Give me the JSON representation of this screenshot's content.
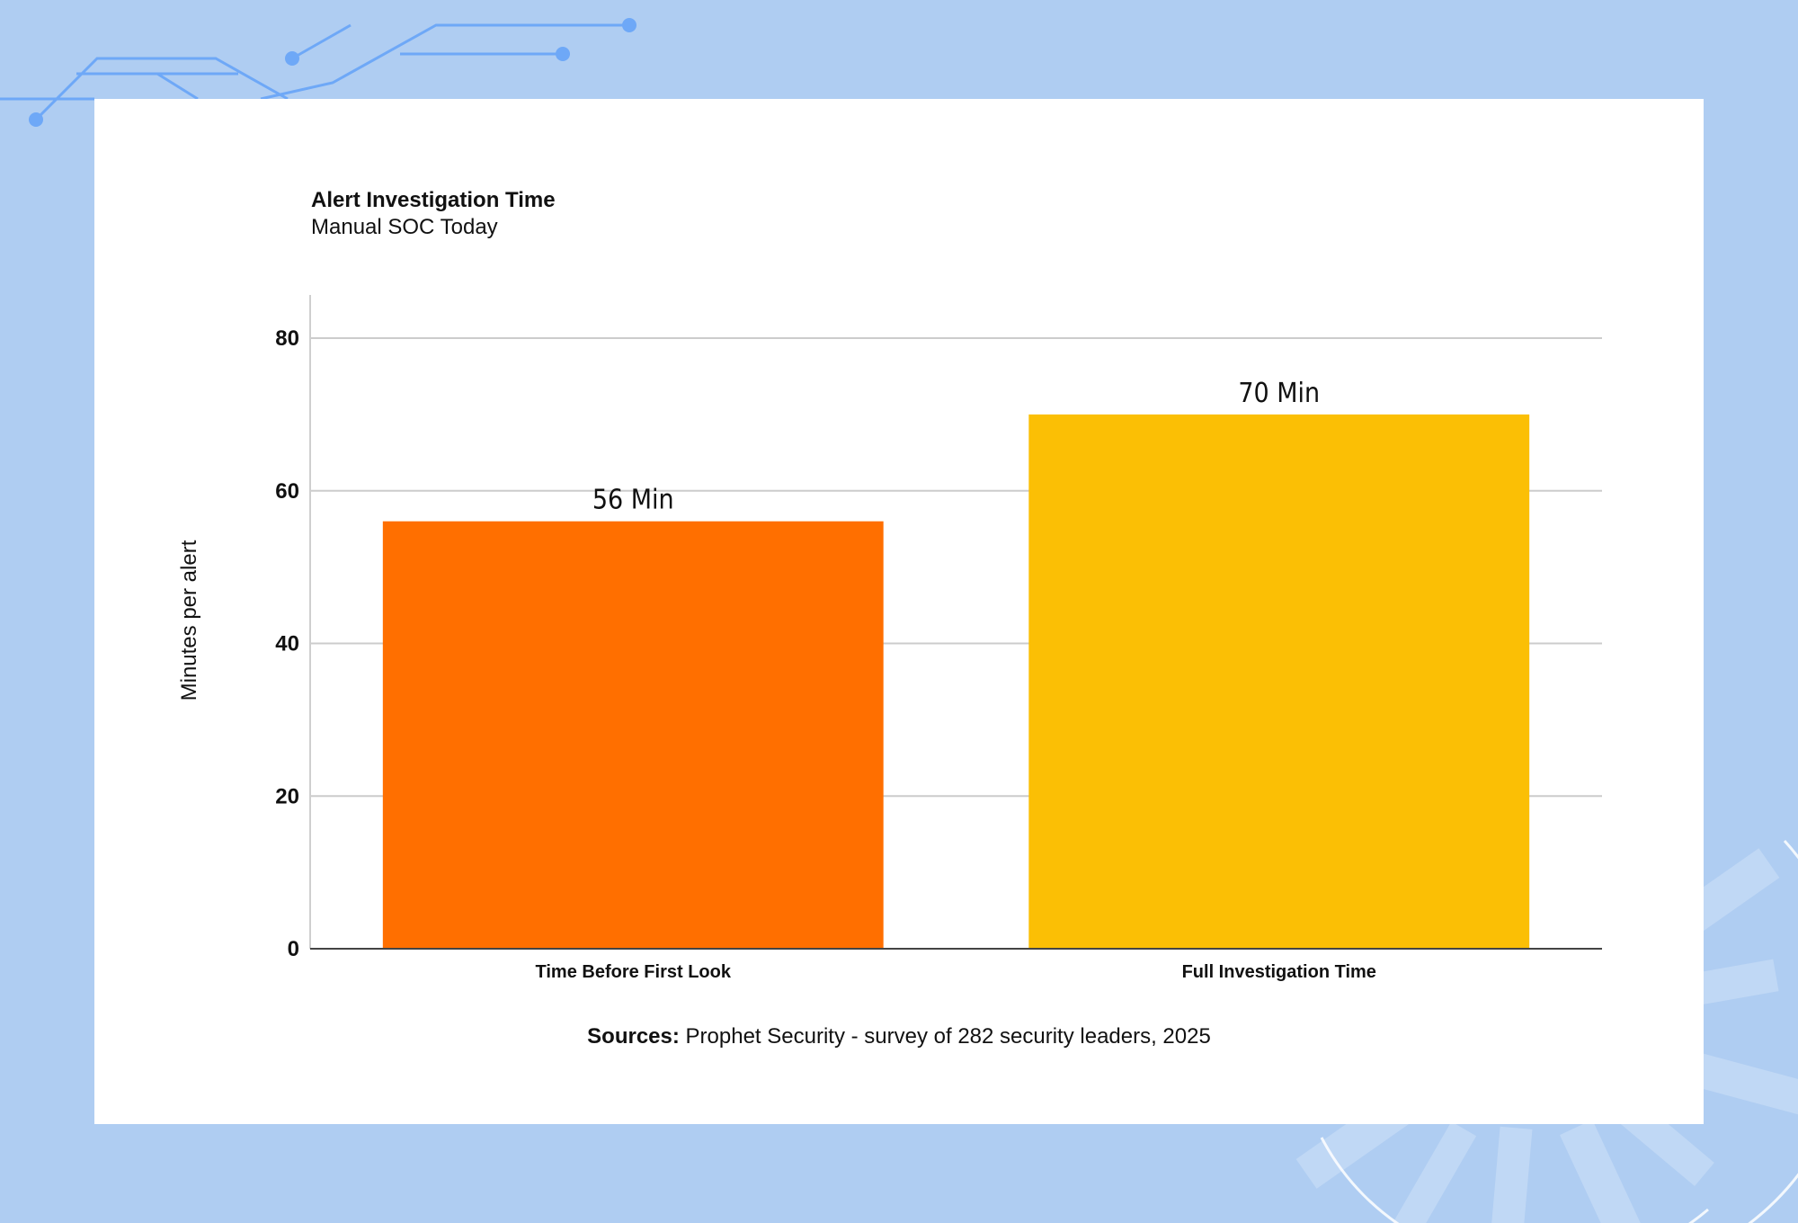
{
  "chart_data": {
    "type": "bar",
    "title": "Alert Investigation Time",
    "subtitle": "Manual SOC Today",
    "ylabel": "Minutes per alert",
    "categories": [
      "Time Before First Look",
      "Full Investigation Time"
    ],
    "values": [
      56,
      70
    ],
    "data_labels": [
      "56 Min",
      "70 Min"
    ],
    "bar_colors": [
      "#ff6f00",
      "#fbbf05"
    ],
    "ylim": [
      0,
      80
    ],
    "yticks": [
      "0",
      "20",
      "40",
      "60",
      "80"
    ],
    "grid": true
  },
  "source": {
    "label": "Sources:",
    "text": " Prophet Security - survey of 282 security leaders, 2025"
  },
  "colors": {
    "background": "#afcdf2",
    "circuit": "#6ea8f7",
    "card": "#ffffff"
  }
}
